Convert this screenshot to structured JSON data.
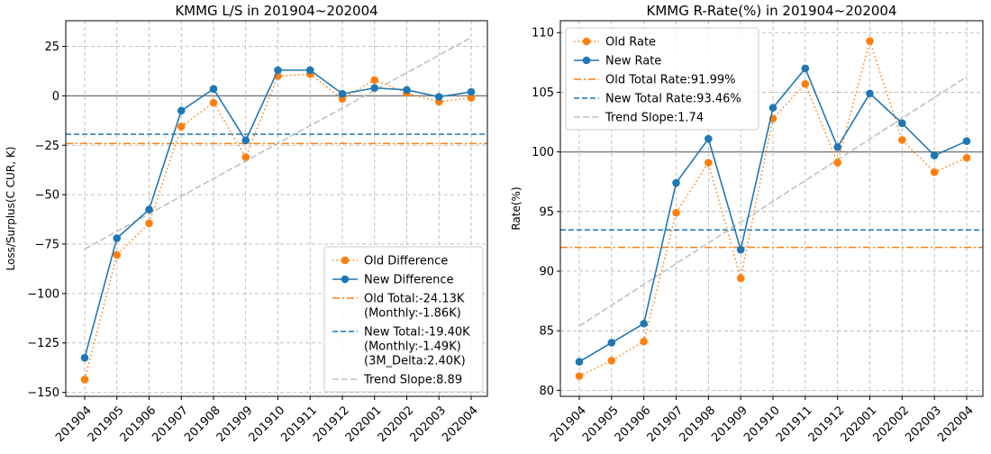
{
  "colors": {
    "orange": "#ff7f0e",
    "blue": "#1f77b4",
    "trend": "#c0c0c0",
    "grid": "#b0b0b0",
    "zero": "#808080"
  },
  "chart_data": [
    {
      "type": "line",
      "title": "KMMG L/S in 201904~202004",
      "xlabel": "",
      "ylabel": "Loss/Surplus(C CUR, K)",
      "categories": [
        "201904",
        "201905",
        "201906",
        "201907",
        "201908",
        "201909",
        "201910",
        "201911",
        "201912",
        "202001",
        "202002",
        "202003",
        "202004"
      ],
      "ylim": [
        -152,
        38
      ],
      "yticks": [
        25,
        0,
        -25,
        -50,
        -75,
        -100,
        -125,
        -150
      ],
      "ytick_labels": [
        "25",
        "0",
        "−25",
        "−50",
        "−75",
        "−100",
        "−125",
        "−150"
      ],
      "zero_line": 0,
      "series": [
        {
          "name": "Old Difference",
          "style": "dotted-marker",
          "color": "orange",
          "values": [
            -143.5,
            -80.5,
            -64.5,
            -15.5,
            -3.5,
            -31,
            10,
            11,
            -1.5,
            8,
            1.5,
            -3,
            -1
          ]
        },
        {
          "name": "New Difference",
          "style": "solid-marker",
          "color": "blue",
          "values": [
            -132.5,
            -72,
            -57.5,
            -7.5,
            3.5,
            -22.5,
            13,
            13,
            1,
            4,
            3,
            -0.5,
            2
          ]
        }
      ],
      "hlines": [
        {
          "value": -24.13,
          "color": "orange",
          "style": "dashdot"
        },
        {
          "value": -19.4,
          "color": "blue",
          "style": "dashed"
        }
      ],
      "trend": {
        "start": -77.5,
        "end": 29.5,
        "color": "trend"
      },
      "legend": {
        "position": "lower-right",
        "entries": [
          {
            "type": "dotted-marker",
            "color": "orange",
            "lines": [
              "Old Difference"
            ]
          },
          {
            "type": "solid-marker",
            "color": "blue",
            "lines": [
              "New Difference"
            ]
          },
          {
            "type": "dashdot",
            "color": "orange",
            "lines": [
              "Old Total:-24.13K",
              "(Monthly:-1.86K)"
            ]
          },
          {
            "type": "dashed",
            "color": "blue",
            "lines": [
              "New Total:-19.40K",
              "(Monthly:-1.49K)",
              "(3M_Delta:2.40K)"
            ]
          },
          {
            "type": "trend",
            "color": "trend",
            "lines": [
              "Trend Slope:8.89"
            ]
          }
        ]
      }
    },
    {
      "type": "line",
      "title": "KMMG R-Rate(%) in 201904~202004",
      "xlabel": "",
      "ylabel": "Rate(%)",
      "categories": [
        "201904",
        "201905",
        "201906",
        "201907",
        "201908",
        "201909",
        "201910",
        "201911",
        "201912",
        "202001",
        "202002",
        "202003",
        "202004"
      ],
      "ylim": [
        79.5,
        111
      ],
      "yticks": [
        110,
        105,
        100,
        95,
        90,
        85,
        80
      ],
      "ytick_labels": [
        "110",
        "105",
        "100",
        "95",
        "90",
        "85",
        "80"
      ],
      "zero_line": 100,
      "series": [
        {
          "name": "Old Rate",
          "style": "dotted-marker",
          "color": "orange",
          "values": [
            81.2,
            82.5,
            84.1,
            94.9,
            99.1,
            89.4,
            102.8,
            105.7,
            99.1,
            109.3,
            101.0,
            98.3,
            99.5
          ]
        },
        {
          "name": "New Rate",
          "style": "solid-marker",
          "color": "blue",
          "values": [
            82.4,
            84.0,
            85.6,
            97.4,
            101.1,
            91.8,
            103.7,
            107.0,
            100.4,
            104.9,
            102.4,
            99.7,
            100.9
          ]
        }
      ],
      "hlines": [
        {
          "value": 91.99,
          "color": "orange",
          "style": "dashdot"
        },
        {
          "value": 93.46,
          "color": "blue",
          "style": "dashed"
        }
      ],
      "trend": {
        "start": 85.4,
        "end": 106.3,
        "color": "trend"
      },
      "legend": {
        "position": "top-left",
        "entries": [
          {
            "type": "dotted-marker",
            "color": "orange",
            "lines": [
              "Old Rate"
            ]
          },
          {
            "type": "solid-marker",
            "color": "blue",
            "lines": [
              "New Rate"
            ]
          },
          {
            "type": "dashdot",
            "color": "orange",
            "lines": [
              "Old Total Rate:91.99%"
            ]
          },
          {
            "type": "dashed",
            "color": "blue",
            "lines": [
              "New Total Rate:93.46%"
            ]
          },
          {
            "type": "trend",
            "color": "trend",
            "lines": [
              "Trend Slope:1.74"
            ]
          }
        ]
      }
    }
  ]
}
